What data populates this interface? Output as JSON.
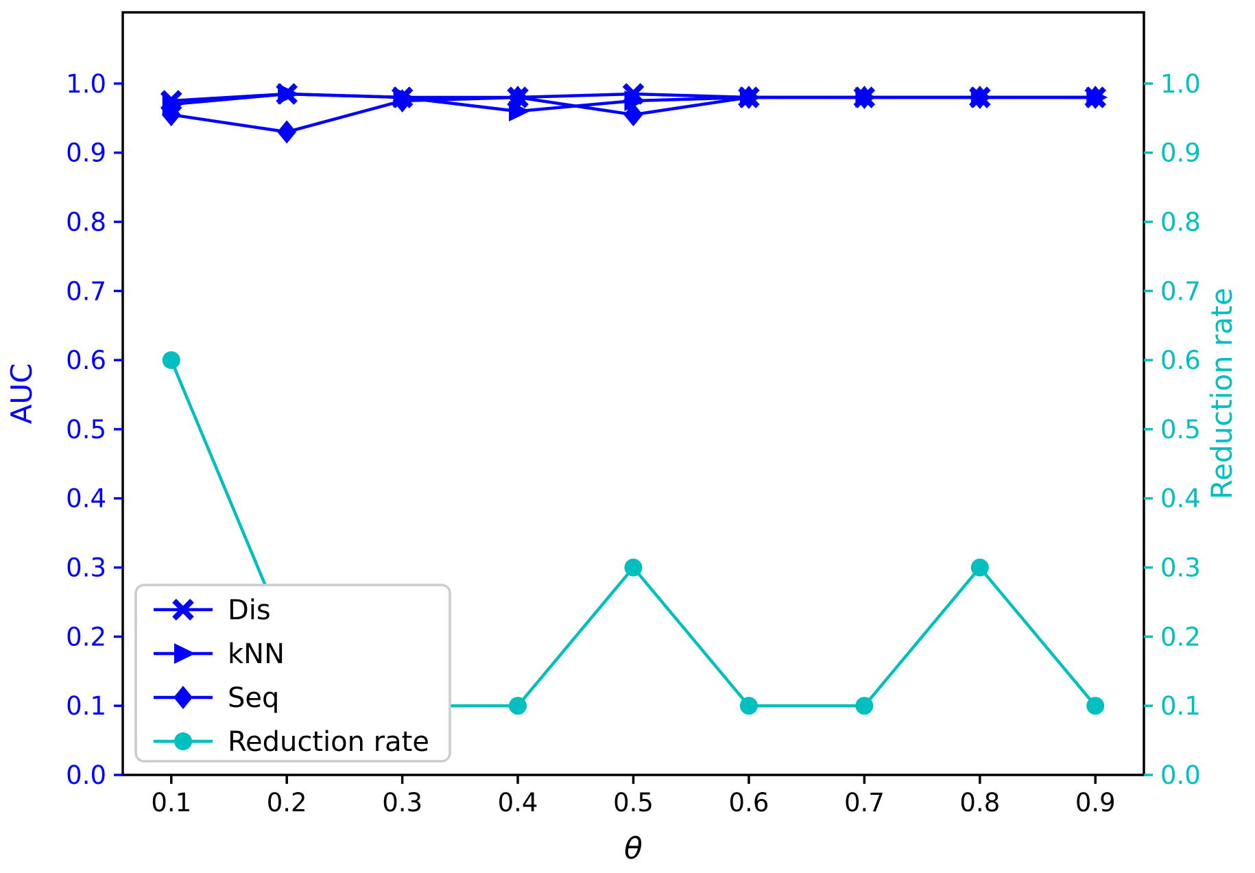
{
  "figure": {
    "background": "#ffffff",
    "frame_color": "#000000",
    "left_axis_color": "#0000ff",
    "right_axis_color": "#00bfbf",
    "legend_border_color": "#cccccc",
    "text_color": "#000000"
  },
  "chart_data": {
    "type": "line",
    "title": "",
    "xlabel": "θ",
    "ylabel_left": "AUC",
    "ylabel_right": "Reduction rate",
    "grid": false,
    "legend_position": "lower left",
    "xlim": [
      0.058,
      0.942
    ],
    "ylim_left": [
      0.0,
      1.103
    ],
    "ylim_right": [
      0.0,
      1.103
    ],
    "x_ticks": {
      "values": [
        0.1,
        0.2,
        0.3,
        0.4,
        0.5,
        0.6,
        0.7,
        0.8,
        0.9
      ],
      "labels": [
        "0.1",
        "0.2",
        "0.3",
        "0.4",
        "0.5",
        "0.6",
        "0.7",
        "0.8",
        "0.9"
      ]
    },
    "y_ticks_left": {
      "values": [
        0.0,
        0.1,
        0.2,
        0.3,
        0.4,
        0.5,
        0.6,
        0.7,
        0.8,
        0.9,
        1.0
      ],
      "labels": [
        "0.0",
        "0.1",
        "0.2",
        "0.3",
        "0.4",
        "0.5",
        "0.6",
        "0.7",
        "0.8",
        "0.9",
        "1.0"
      ]
    },
    "y_ticks_right": {
      "values": [
        0.0,
        0.1,
        0.2,
        0.3,
        0.4,
        0.5,
        0.6,
        0.7,
        0.8,
        0.9,
        1.0
      ],
      "labels": [
        "0.0",
        "0.1",
        "0.2",
        "0.3",
        "0.4",
        "0.5",
        "0.6",
        "0.7",
        "0.8",
        "0.9",
        "1.0"
      ]
    },
    "x": [
      0.1,
      0.2,
      0.3,
      0.4,
      0.5,
      0.6,
      0.7,
      0.8,
      0.9
    ],
    "series": [
      {
        "name": "Dis",
        "axis": "left",
        "color": "#0000ff",
        "marker": "x",
        "values": [
          0.975,
          0.985,
          0.98,
          0.98,
          0.985,
          0.98,
          0.98,
          0.98,
          0.98
        ]
      },
      {
        "name": "kNN",
        "axis": "left",
        "color": "#0000ff",
        "marker": "triangle-right",
        "values": [
          0.97,
          0.985,
          0.98,
          0.96,
          0.975,
          0.98,
          0.98,
          0.98,
          0.98
        ]
      },
      {
        "name": "Seq",
        "axis": "left",
        "color": "#0000ff",
        "marker": "diamond",
        "values": [
          0.955,
          0.93,
          0.975,
          0.98,
          0.955,
          0.98,
          0.98,
          0.98,
          0.98
        ]
      },
      {
        "name": "Reduction rate",
        "axis": "right",
        "color": "#00bfbf",
        "marker": "circle",
        "values": [
          0.6,
          0.2,
          0.1,
          0.1,
          0.3,
          0.1,
          0.1,
          0.3,
          0.1
        ]
      }
    ],
    "legend_entries": [
      "Dis",
      "kNN",
      "Seq",
      "Reduction rate"
    ]
  }
}
